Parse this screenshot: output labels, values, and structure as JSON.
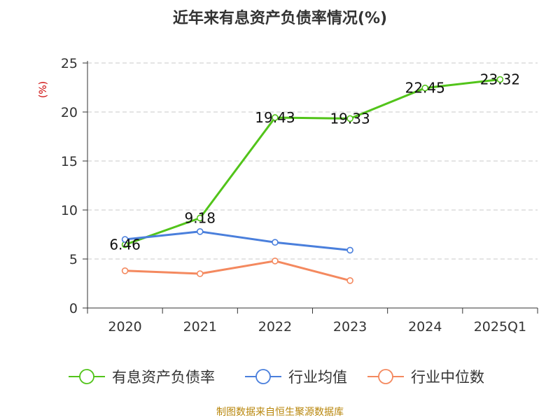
{
  "chart_data": {
    "type": "line",
    "title": "近年来有息资产负债率情况(%)",
    "ylabel": "(%)",
    "xlabel": "",
    "categories": [
      "2020",
      "2021",
      "2022",
      "2023",
      "2024",
      "2025Q1"
    ],
    "ylim": [
      0,
      25
    ],
    "yticks": [
      0,
      5,
      10,
      15,
      20,
      25
    ],
    "grid": true,
    "legend_position": "bottom",
    "series": [
      {
        "name": "有息资产负债率",
        "color": "#52c41a",
        "values": [
          6.46,
          9.18,
          19.43,
          19.33,
          22.45,
          23.32
        ],
        "labels": [
          "6.46",
          "9.18",
          "19.43",
          "19.33",
          "22.45",
          "23.32"
        ]
      },
      {
        "name": "行业均值",
        "color": "#4a7fdc",
        "values": [
          7.0,
          7.8,
          6.7,
          5.9,
          null,
          null
        ]
      },
      {
        "name": "行业中位数",
        "color": "#f4895f",
        "values": [
          3.8,
          3.5,
          4.8,
          2.8,
          null,
          null
        ]
      }
    ]
  },
  "source": "制图数据来自恒生聚源数据库"
}
